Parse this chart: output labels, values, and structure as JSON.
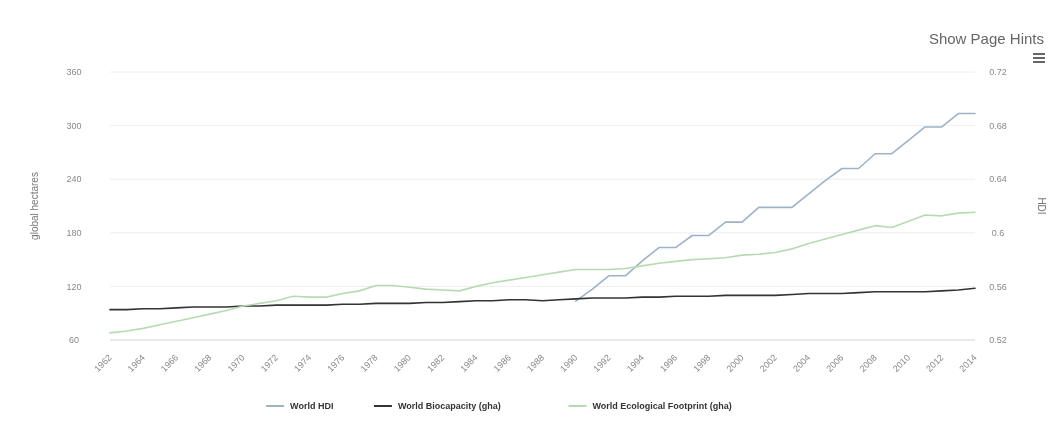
{
  "chart_data": {
    "type": "line",
    "ylabel": "global hectares",
    "y2label": "HDI",
    "annotations": [
      "Show Page Hints"
    ],
    "x": [
      1962,
      1963,
      1964,
      1965,
      1966,
      1967,
      1968,
      1969,
      1970,
      1971,
      1972,
      1973,
      1974,
      1975,
      1976,
      1977,
      1978,
      1979,
      1980,
      1981,
      1982,
      1983,
      1984,
      1985,
      1986,
      1987,
      1988,
      1989,
      1990,
      1991,
      1992,
      1993,
      1994,
      1995,
      1996,
      1997,
      1998,
      1999,
      2000,
      2001,
      2002,
      2003,
      2004,
      2005,
      2006,
      2007,
      2008,
      2009,
      2010,
      2011,
      2012,
      2013,
      2014
    ],
    "xlim": [
      1962,
      2014
    ],
    "xticks": [
      1962,
      1964,
      1966,
      1968,
      1970,
      1972,
      1974,
      1976,
      1978,
      1980,
      1982,
      1984,
      1986,
      1988,
      1990,
      1992,
      1994,
      1996,
      1998,
      2000,
      2002,
      2004,
      2006,
      2008,
      2010,
      2012,
      2014
    ],
    "ylim": [
      60,
      360
    ],
    "yticks": [
      60,
      120,
      180,
      240,
      300,
      360
    ],
    "y2lim": [
      0.52,
      0.72
    ],
    "y2ticks": [
      0.52,
      0.56,
      0.6,
      0.64,
      0.68,
      0.72
    ],
    "grid": "y",
    "legend": "bottom",
    "marker": "none",
    "line_style": "solid",
    "series": [
      {
        "name": "World HDI",
        "color": "#9db3c8",
        "axis": "y2",
        "x": [
          1990,
          1991,
          1992,
          1993,
          1994,
          1995,
          1996,
          1997,
          1998,
          1999,
          2000,
          2001,
          2002,
          2003,
          2004,
          2005,
          2006,
          2007,
          2008,
          2009,
          2010,
          2011,
          2012,
          2013,
          2014
        ],
        "values": [
          0.549,
          0.558,
          0.568,
          0.568,
          0.579,
          0.589,
          0.589,
          0.598,
          0.598,
          0.608,
          0.608,
          0.619,
          0.619,
          0.619,
          0.629,
          0.639,
          0.648,
          0.648,
          0.659,
          0.659,
          0.669,
          0.679,
          0.679,
          0.689,
          0.689
        ]
      },
      {
        "name": "World Biocapacity (gha)",
        "color": "#333333",
        "values": [
          94,
          94,
          95,
          95,
          96,
          97,
          97,
          97,
          98,
          98,
          99,
          99,
          99,
          99,
          100,
          100,
          101,
          101,
          101,
          102,
          102,
          103,
          104,
          104,
          105,
          105,
          104,
          105,
          106,
          107,
          107,
          107,
          108,
          108,
          109,
          109,
          109,
          110,
          110,
          110,
          110,
          111,
          112,
          112,
          112,
          113,
          114,
          114,
          114,
          114,
          115,
          116,
          118
        ]
      },
      {
        "name": "World Ecological Footprint (gha)",
        "color": "#b5dcb0",
        "values": [
          68,
          70,
          73,
          77,
          81,
          85,
          89,
          93,
          98,
          101,
          104,
          109,
          108,
          108,
          112,
          115,
          121,
          121,
          119,
          117,
          116,
          115,
          120,
          124,
          127,
          130,
          133,
          136,
          139,
          139,
          139,
          140,
          143,
          146,
          148,
          150,
          151,
          152,
          155,
          156,
          158,
          162,
          168,
          173,
          178,
          183,
          188,
          186,
          193,
          200,
          199,
          202,
          203
        ]
      }
    ]
  }
}
